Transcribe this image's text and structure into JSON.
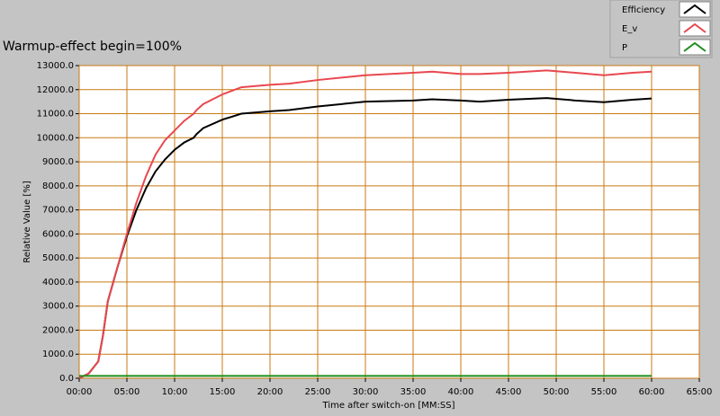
{
  "chart_data": {
    "type": "line",
    "title": "Warmup-effect begin=100%",
    "x_label": "Time after switch-on [MM:SS]",
    "y_label": "Relative Value [%]",
    "x": [
      0,
      1,
      2,
      2.5,
      3,
      4,
      5,
      6,
      7,
      8,
      9,
      10,
      11,
      12,
      12.3,
      13,
      15,
      17,
      20,
      22,
      25,
      30,
      35,
      37,
      40,
      42,
      45,
      49,
      52,
      55,
      58,
      60
    ],
    "series": [
      {
        "name": "Efficiency",
        "color": "#000000",
        "values": [
          0,
          200,
          700,
          1800,
          3200,
          4600,
          5900,
          7000,
          7900,
          8600,
          9100,
          9500,
          9800,
          10000,
          10150,
          10400,
          10750,
          11000,
          11100,
          11150,
          11300,
          11500,
          11550,
          11600,
          11550,
          11500,
          11580,
          11650,
          11550,
          11480,
          11580,
          11630
        ]
      },
      {
        "name": "E_v",
        "color": "#e8484f",
        "values": [
          0,
          200,
          700,
          1800,
          3200,
          4600,
          6000,
          7300,
          8400,
          9300,
          9900,
          10300,
          10700,
          11000,
          11150,
          11400,
          11800,
          12100,
          12200,
          12250,
          12400,
          12600,
          12700,
          12750,
          12650,
          12650,
          12700,
          12800,
          12700,
          12600,
          12700,
          12750
        ]
      },
      {
        "name": "P",
        "color": "#1f8f1f",
        "values": [
          100,
          100,
          100,
          100,
          100,
          100,
          100,
          100,
          100,
          100,
          100,
          100,
          100,
          100,
          100,
          100,
          100,
          100,
          100,
          100,
          100,
          100,
          100,
          100,
          100,
          100,
          100,
          100,
          100,
          100,
          100,
          100
        ]
      }
    ],
    "xlim": [
      0,
      65
    ],
    "xticks": [
      {
        "value": 0,
        "label": "00:00"
      },
      {
        "value": 5,
        "label": "05:00"
      },
      {
        "value": 10,
        "label": "10:00"
      },
      {
        "value": 15,
        "label": "15:00"
      },
      {
        "value": 20,
        "label": "20:00"
      },
      {
        "value": 25,
        "label": "25:00"
      },
      {
        "value": 30,
        "label": "30:00"
      },
      {
        "value": 35,
        "label": "35:00"
      },
      {
        "value": 40,
        "label": "40:00"
      },
      {
        "value": 45,
        "label": "45:00"
      },
      {
        "value": 50,
        "label": "50:00"
      },
      {
        "value": 55,
        "label": "55:00"
      },
      {
        "value": 60,
        "label": "60:00"
      },
      {
        "value": 65,
        "label": "65:00"
      }
    ],
    "ylim": [
      0,
      13000
    ],
    "yticks": [
      {
        "value": 0,
        "label": "0.0"
      },
      {
        "value": 1000,
        "label": "1000.0"
      },
      {
        "value": 2000,
        "label": "2000.0"
      },
      {
        "value": 3000,
        "label": "3000.0"
      },
      {
        "value": 4000,
        "label": "4000.0"
      },
      {
        "value": 5000,
        "label": "5000.0"
      },
      {
        "value": 6000,
        "label": "6000.0"
      },
      {
        "value": 7000,
        "label": "7000.0"
      },
      {
        "value": 8000,
        "label": "8000.0"
      },
      {
        "value": 9000,
        "label": "9000.0"
      },
      {
        "value": 10000,
        "label": "10000.0"
      },
      {
        "value": 11000,
        "label": "11000.0"
      },
      {
        "value": 12000,
        "label": "12000.0"
      },
      {
        "value": 13000,
        "label": "13000.0"
      }
    ],
    "grid": true,
    "grid_color": "#c87a14",
    "legend": "top-right"
  }
}
